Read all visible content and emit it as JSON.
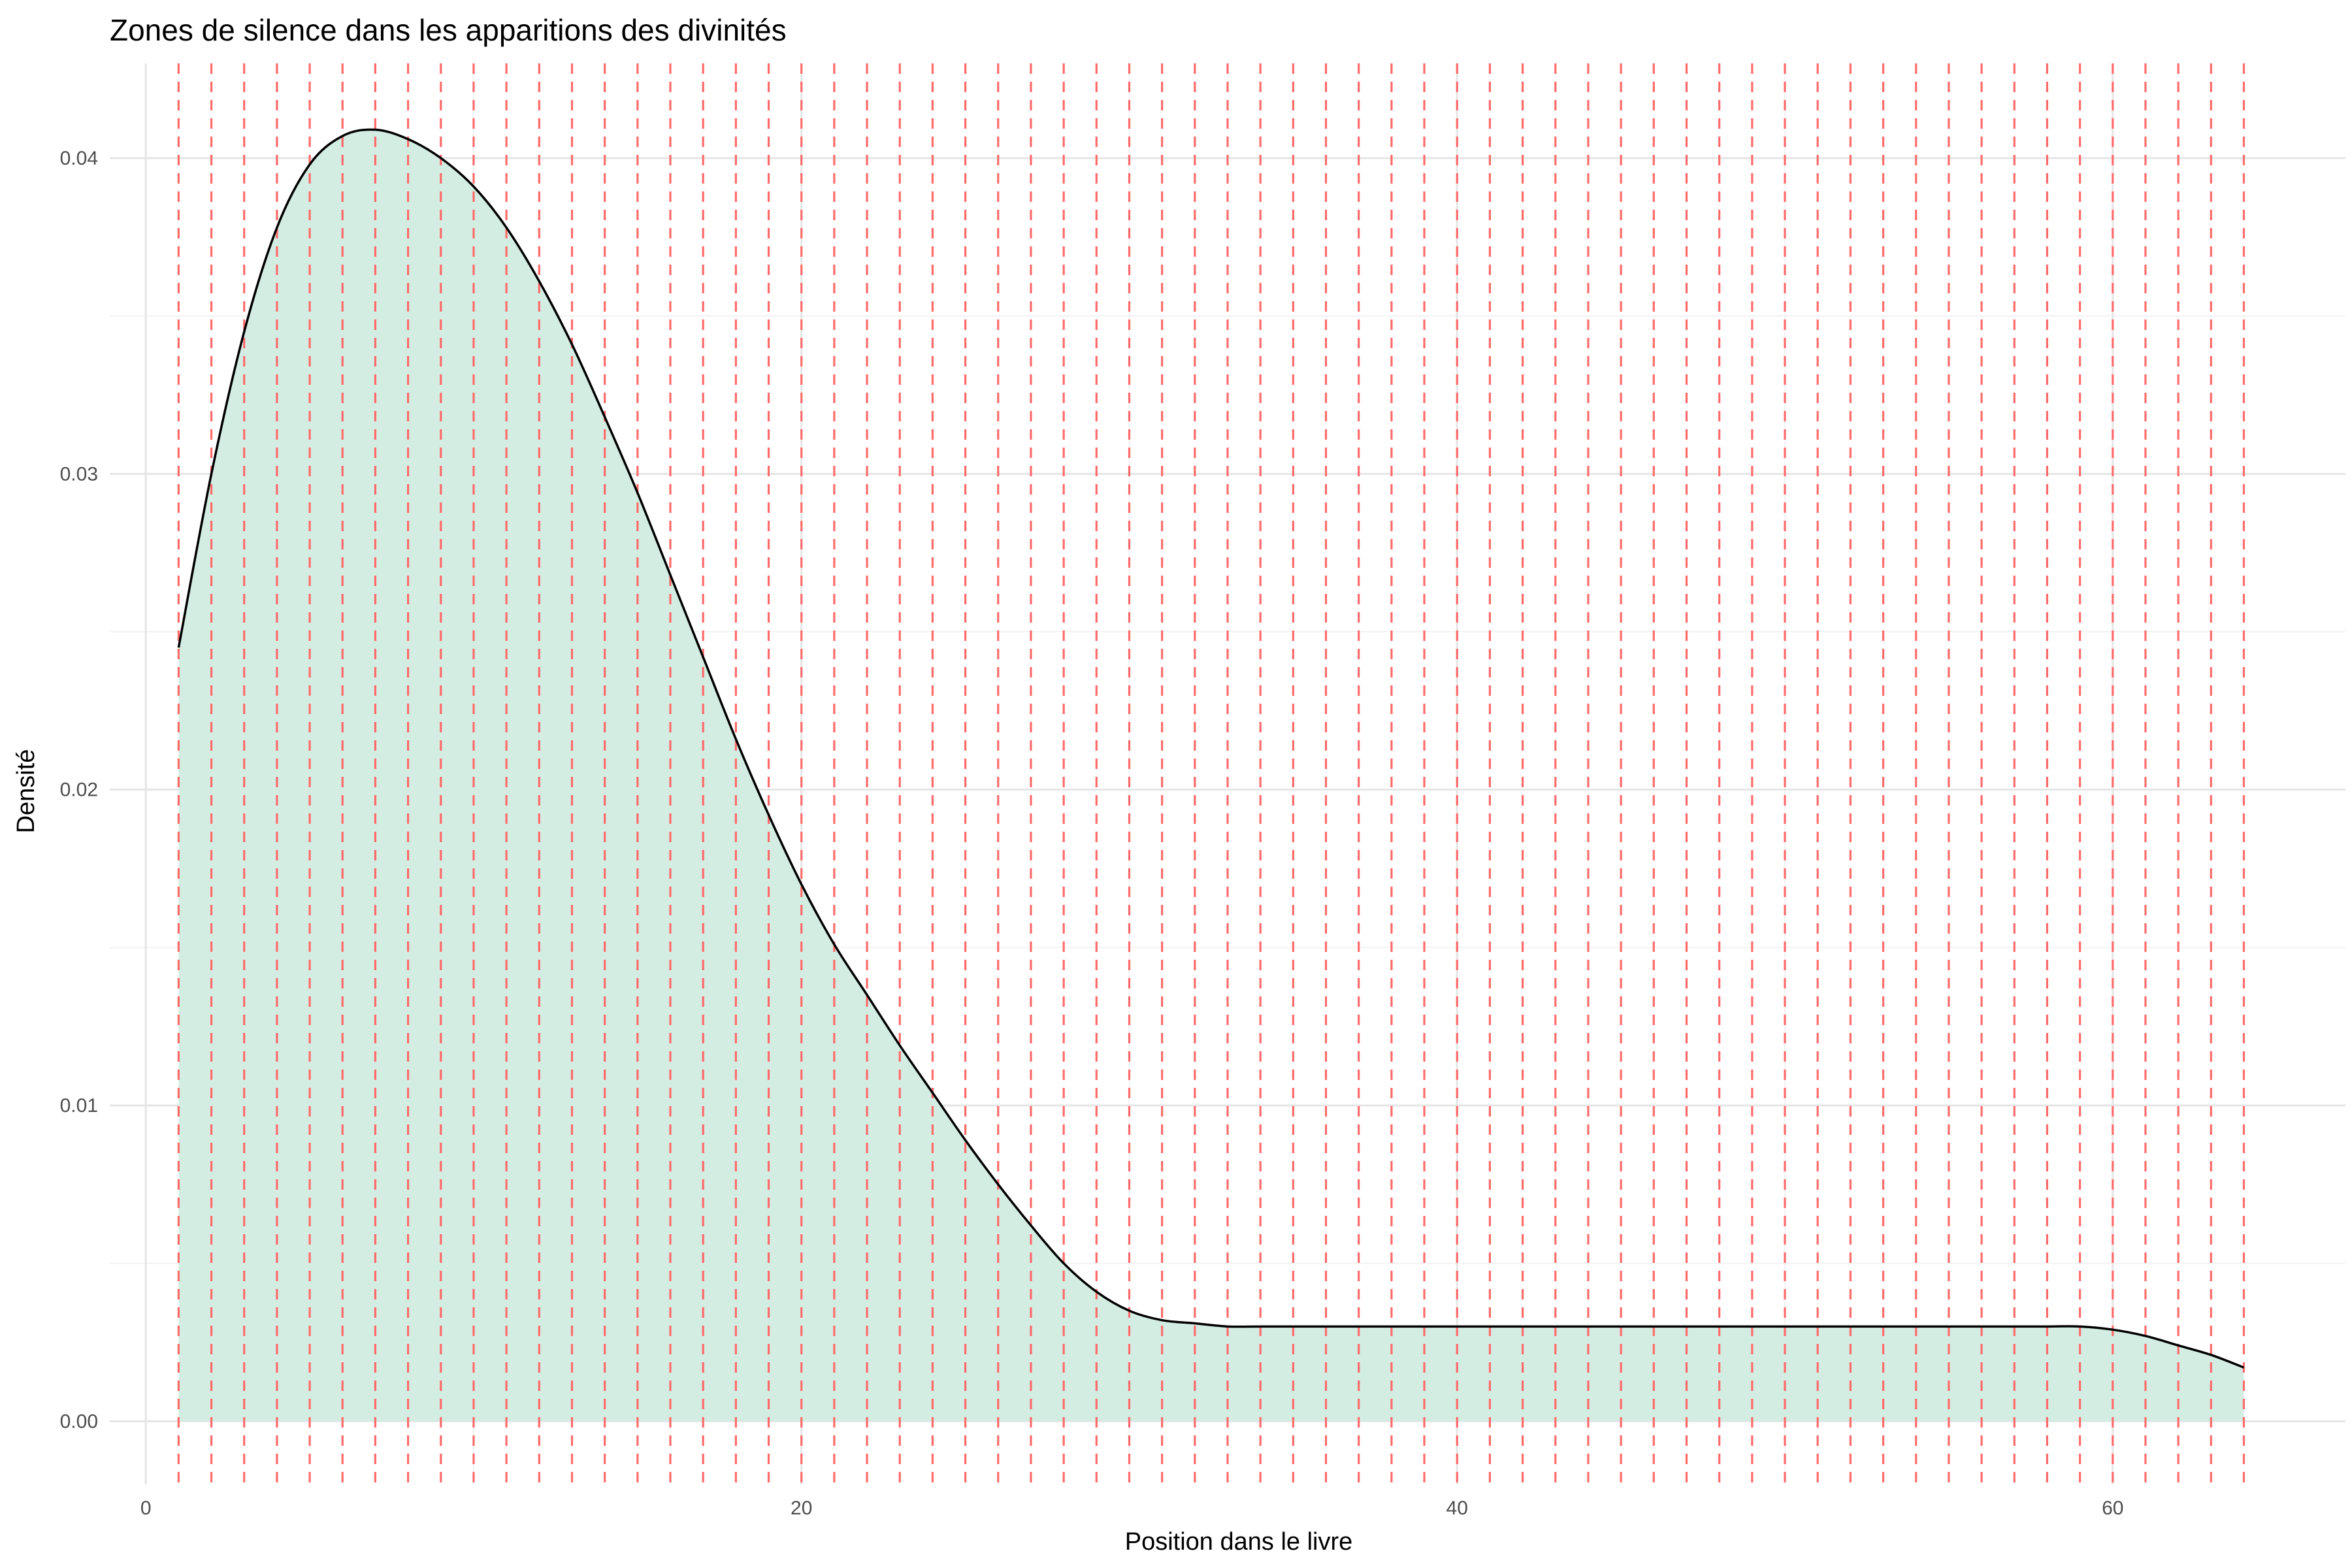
{
  "chart_data": {
    "type": "area",
    "title": "Zones de silence dans les apparitions des divinités",
    "xlabel": "Position dans le livre",
    "ylabel": "Densité",
    "xlim": [
      -1.1,
      67.1
    ],
    "ylim": [
      -0.002,
      0.043
    ],
    "x_ticks": [
      0,
      20,
      40,
      60
    ],
    "x_tick_labels": [
      "0",
      "20",
      "40",
      "60"
    ],
    "y_ticks": [
      0.0,
      0.01,
      0.02,
      0.03,
      0.04
    ],
    "y_tick_labels": [
      "0.00",
      "0.01",
      "0.02",
      "0.03",
      "0.04"
    ],
    "grid": true,
    "series": [
      {
        "x": [
          1,
          2,
          3,
          4,
          5,
          6,
          7,
          8,
          9,
          10,
          11,
          12,
          13,
          14,
          15,
          16,
          17,
          18,
          19,
          20,
          21,
          22,
          23,
          24,
          25,
          26,
          27,
          28,
          29,
          30,
          31,
          32,
          33,
          34,
          35,
          36,
          37,
          38,
          39,
          40,
          41,
          42,
          43,
          44,
          45,
          46,
          47,
          48,
          49,
          50,
          51,
          52,
          53,
          54,
          55,
          56,
          57,
          58,
          59,
          60,
          61,
          62,
          63,
          64
        ],
        "y": [
          0.0245,
          0.03,
          0.0345,
          0.0378,
          0.0398,
          0.0407,
          0.0409,
          0.0406,
          0.04,
          0.0391,
          0.0378,
          0.0361,
          0.0341,
          0.0318,
          0.0294,
          0.0268,
          0.0242,
          0.0216,
          0.0192,
          0.017,
          0.0151,
          0.0135,
          0.0119,
          0.0104,
          0.0089,
          0.0075,
          0.0062,
          0.005,
          0.0041,
          0.0035,
          0.0032,
          0.0031,
          0.003,
          0.003,
          0.003,
          0.003,
          0.003,
          0.003,
          0.003,
          0.003,
          0.003,
          0.003,
          0.003,
          0.003,
          0.003,
          0.003,
          0.003,
          0.003,
          0.003,
          0.003,
          0.003,
          0.003,
          0.003,
          0.003,
          0.003,
          0.003,
          0.003,
          0.003,
          0.003,
          0.0029,
          0.0027,
          0.0024,
          0.0021,
          0.0017
        ]
      }
    ],
    "vlines": [
      1,
      2,
      3,
      4,
      5,
      6,
      7,
      8,
      9,
      10,
      11,
      12,
      13,
      14,
      15,
      16,
      17,
      18,
      19,
      20,
      21,
      22,
      23,
      24,
      25,
      26,
      27,
      28,
      29,
      30,
      31,
      32,
      33,
      34,
      35,
      36,
      37,
      38,
      39,
      40,
      41,
      42,
      43,
      44,
      45,
      46,
      47,
      48,
      49,
      50,
      51,
      52,
      53,
      54,
      55,
      56,
      57,
      58,
      59,
      60,
      61,
      62,
      63,
      64
    ],
    "colors": {
      "fill": "#d3ede3",
      "line": "#000000",
      "vline": "#ff6b6b",
      "grid_major": "#e5e5e5",
      "grid_minor": "#f2f2f2",
      "background": "#ffffff"
    }
  }
}
